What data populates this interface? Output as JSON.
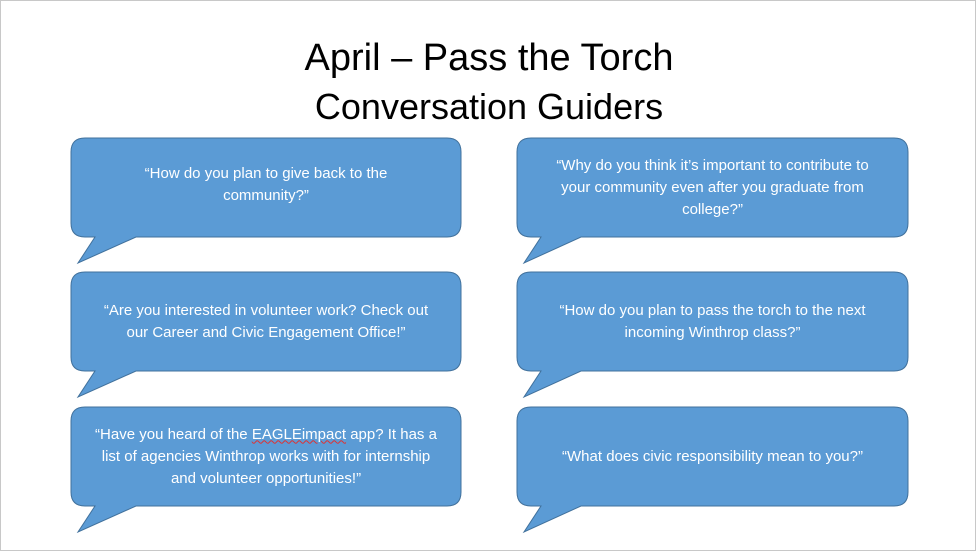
{
  "slide": {
    "title_line1": "April – Pass the Torch",
    "title_line2": "Conversation Guiders"
  },
  "callouts": {
    "left": [
      "“How do you plan to give back to the community?”",
      "“Are you interested in volunteer work?  Check out our Career and Civic Engagement Office!”",
      {
        "before": "“Have you heard of the ",
        "flagged_word": "EAGLEimpact",
        "after": " app?  It has a list of agencies Winthrop works with for internship and volunteer opportunities!”"
      }
    ],
    "right": [
      "“Why do you think it’s important to contribute to your community even after you graduate from college?”",
      "“How do you plan to pass the torch to the next incoming Winthrop class?”",
      "“What does civic responsibility mean to you?”"
    ]
  },
  "colors": {
    "callout_fill": "#5B9BD5",
    "callout_border": "#41719C",
    "callout_text": "#FFFFFF",
    "spellcheck_underline": "#E03030"
  }
}
